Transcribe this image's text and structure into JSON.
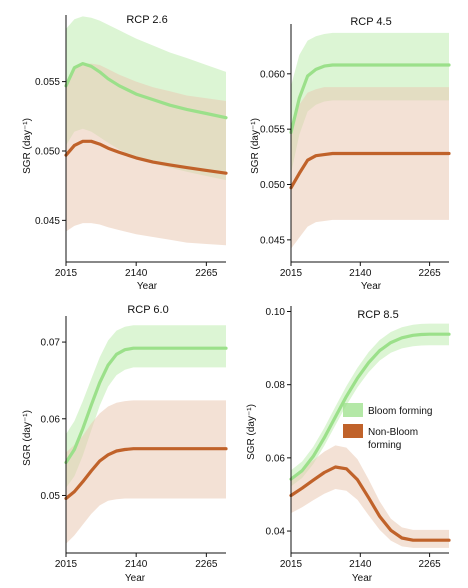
{
  "colors": {
    "bloom_line": "#9be08a",
    "bloom_band": "#c9f0bd",
    "nonbloom_line": "#c0622a",
    "nonbloom_band": "#e9c8b3"
  },
  "legend": {
    "entries": [
      {
        "label": "Bloom forming",
        "color_key": "bloom_line"
      },
      {
        "label": "Non-Bloom\nforming",
        "color_key": "nonbloom_line"
      }
    ]
  },
  "chart_data": [
    {
      "type": "line",
      "title": "RCP 2.6",
      "xlabel": "Year",
      "ylabel": "SGR (day⁻¹)",
      "xlim": [
        2015,
        2300
      ],
      "ylim": [
        0.042,
        0.0598
      ],
      "xticks": [
        2015,
        2140,
        2265
      ],
      "yticks": [
        0.045,
        0.05,
        0.055
      ],
      "ytick_labels": [
        "0.045",
        "0.050",
        "0.055"
      ],
      "x": [
        2015,
        2030,
        2045,
        2060,
        2075,
        2090,
        2110,
        2140,
        2170,
        2200,
        2230,
        2265,
        2300
      ],
      "series": [
        {
          "name": "Bloom forming",
          "values": [
            0.0547,
            0.056,
            0.0563,
            0.0561,
            0.0557,
            0.0552,
            0.0547,
            0.0541,
            0.0537,
            0.0533,
            0.053,
            0.0527,
            0.0524
          ],
          "lower": [
            0.0504,
            0.0514,
            0.0516,
            0.0514,
            0.051,
            0.0506,
            0.0501,
            0.0495,
            0.0491,
            0.0488,
            0.0485,
            0.0482,
            0.0479
          ],
          "upper": [
            0.0588,
            0.0595,
            0.0597,
            0.0596,
            0.0594,
            0.0591,
            0.0587,
            0.0581,
            0.0576,
            0.0571,
            0.0567,
            0.0562,
            0.0557
          ]
        },
        {
          "name": "Non-Bloom forming",
          "values": [
            0.0497,
            0.0504,
            0.0507,
            0.0507,
            0.0505,
            0.0502,
            0.0499,
            0.0495,
            0.0492,
            0.049,
            0.0488,
            0.0486,
            0.0484
          ],
          "lower": [
            0.0442,
            0.0446,
            0.0448,
            0.0448,
            0.0447,
            0.0445,
            0.0443,
            0.044,
            0.0438,
            0.0436,
            0.0434,
            0.0433,
            0.0432
          ],
          "upper": [
            0.055,
            0.056,
            0.0563,
            0.0563,
            0.0562,
            0.0559,
            0.0555,
            0.055,
            0.0546,
            0.0543,
            0.054,
            0.0538,
            0.0536
          ]
        }
      ]
    },
    {
      "type": "line",
      "title": "RCP 4.5",
      "xlabel": "Year",
      "ylabel": "SGR (day⁻¹)",
      "xlim": [
        2015,
        2300
      ],
      "ylim": [
        0.043,
        0.0645
      ],
      "xticks": [
        2015,
        2140,
        2265
      ],
      "yticks": [
        0.045,
        0.05,
        0.055,
        0.06
      ],
      "ytick_labels": [
        "0.045",
        "0.050",
        "0.055",
        "0.060"
      ],
      "x": [
        2015,
        2030,
        2045,
        2060,
        2075,
        2090,
        2110,
        2140,
        2170,
        2200,
        2230,
        2265,
        2300
      ],
      "series": [
        {
          "name": "Bloom forming",
          "values": [
            0.0547,
            0.0578,
            0.0598,
            0.0604,
            0.0607,
            0.0608,
            0.0608,
            0.0608,
            0.0608,
            0.0608,
            0.0608,
            0.0608,
            0.0608
          ],
          "lower": [
            0.051,
            0.0545,
            0.0566,
            0.0572,
            0.0575,
            0.0576,
            0.0576,
            0.0576,
            0.0576,
            0.0576,
            0.0576,
            0.0576,
            0.0576
          ],
          "upper": [
            0.0589,
            0.0617,
            0.063,
            0.0634,
            0.0636,
            0.0637,
            0.0637,
            0.0637,
            0.0637,
            0.0637,
            0.0637,
            0.0637,
            0.0637
          ]
        },
        {
          "name": "Non-Bloom forming",
          "values": [
            0.0497,
            0.051,
            0.0522,
            0.0526,
            0.0527,
            0.0528,
            0.0528,
            0.0528,
            0.0528,
            0.0528,
            0.0528,
            0.0528,
            0.0528
          ],
          "lower": [
            0.0442,
            0.0452,
            0.0462,
            0.0466,
            0.0467,
            0.0468,
            0.0468,
            0.0468,
            0.0468,
            0.0468,
            0.0468,
            0.0468,
            0.0468
          ],
          "upper": [
            0.0554,
            0.0572,
            0.0583,
            0.0586,
            0.0588,
            0.0588,
            0.0588,
            0.0588,
            0.0588,
            0.0588,
            0.0588,
            0.0588,
            0.0588
          ]
        }
      ]
    },
    {
      "type": "line",
      "title": "RCP 6.0",
      "xlabel": "Year",
      "ylabel": "SGR (day⁻¹)",
      "xlim": [
        2015,
        2300
      ],
      "ylim": [
        0.0425,
        0.0734
      ],
      "xticks": [
        2015,
        2140,
        2265
      ],
      "yticks": [
        0.05,
        0.06,
        0.07
      ],
      "ytick_labels": [
        "0.05",
        "0.06",
        "0.07"
      ],
      "x": [
        2015,
        2030,
        2045,
        2060,
        2075,
        2090,
        2105,
        2120,
        2135,
        2150,
        2180,
        2220,
        2265,
        2300
      ],
      "series": [
        {
          "name": "Bloom forming",
          "values": [
            0.0543,
            0.056,
            0.0587,
            0.0618,
            0.0647,
            0.067,
            0.0684,
            0.069,
            0.0692,
            0.0692,
            0.0692,
            0.0692,
            0.0692,
            0.0692
          ],
          "lower": [
            0.051,
            0.0525,
            0.0552,
            0.0585,
            0.0617,
            0.0642,
            0.0657,
            0.0664,
            0.0667,
            0.0667,
            0.0667,
            0.0667,
            0.0667,
            0.0667
          ],
          "upper": [
            0.058,
            0.0597,
            0.0623,
            0.0652,
            0.068,
            0.0702,
            0.0715,
            0.072,
            0.0722,
            0.0722,
            0.0722,
            0.0722,
            0.0722,
            0.0722
          ]
        },
        {
          "name": "Non-Bloom forming",
          "values": [
            0.0496,
            0.0505,
            0.0518,
            0.0532,
            0.0545,
            0.0553,
            0.0558,
            0.056,
            0.0561,
            0.0561,
            0.0561,
            0.0561,
            0.0561,
            0.0561
          ],
          "lower": [
            0.0437,
            0.0448,
            0.0462,
            0.0476,
            0.0487,
            0.0493,
            0.0495,
            0.0496,
            0.0496,
            0.0496,
            0.0496,
            0.0496,
            0.0496,
            0.0496
          ],
          "upper": [
            0.0556,
            0.0566,
            0.0578,
            0.0594,
            0.0607,
            0.0616,
            0.0621,
            0.0623,
            0.0624,
            0.0624,
            0.0624,
            0.0624,
            0.0624,
            0.0624
          ]
        }
      ]
    },
    {
      "type": "line",
      "title": "RCP 8.5",
      "xlabel": "Year",
      "ylabel": "SGR (day⁻¹)",
      "xlim": [
        2015,
        2300
      ],
      "ylim": [
        0.034,
        0.1015
      ],
      "xticks": [
        2015,
        2140,
        2265
      ],
      "yticks": [
        0.04,
        0.06,
        0.08,
        0.1
      ],
      "ytick_labels": [
        "0.04",
        "0.06",
        "0.08",
        "0.10"
      ],
      "x": [
        2015,
        2035,
        2055,
        2075,
        2095,
        2115,
        2135,
        2155,
        2175,
        2195,
        2215,
        2235,
        2250,
        2265,
        2300
      ],
      "series": [
        {
          "name": "Bloom forming",
          "values": [
            0.0542,
            0.0565,
            0.0604,
            0.0655,
            0.0712,
            0.0768,
            0.0818,
            0.086,
            0.0893,
            0.0915,
            0.0928,
            0.0935,
            0.0937,
            0.0938,
            0.0938
          ],
          "lower": [
            0.0522,
            0.0545,
            0.0583,
            0.0633,
            0.0689,
            0.0744,
            0.0793,
            0.0834,
            0.0866,
            0.0887,
            0.0899,
            0.0905,
            0.0907,
            0.0908,
            0.0908
          ],
          "upper": [
            0.0566,
            0.059,
            0.063,
            0.0682,
            0.074,
            0.0796,
            0.0846,
            0.0889,
            0.0922,
            0.0944,
            0.0957,
            0.0964,
            0.0966,
            0.0967,
            0.0967
          ]
        },
        {
          "name": "Non-Bloom forming",
          "values": [
            0.0497,
            0.0517,
            0.0539,
            0.056,
            0.0575,
            0.057,
            0.054,
            0.0491,
            0.044,
            0.0402,
            0.0381,
            0.0375,
            0.0375,
            0.0375,
            0.0375
          ],
          "lower": [
            0.0449,
            0.0465,
            0.0484,
            0.0502,
            0.0515,
            0.051,
            0.0485,
            0.0443,
            0.0403,
            0.0374,
            0.0358,
            0.0354,
            0.0354,
            0.0354,
            0.0354
          ],
          "upper": [
            0.0545,
            0.0568,
            0.0593,
            0.0617,
            0.0634,
            0.0628,
            0.0596,
            0.0541,
            0.0481,
            0.0434,
            0.041,
            0.0403,
            0.0403,
            0.0403,
            0.0403
          ]
        }
      ]
    }
  ]
}
